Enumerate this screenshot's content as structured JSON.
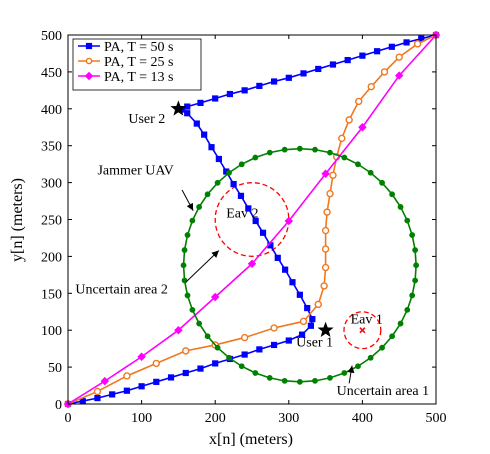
{
  "chart_data": {
    "type": "line",
    "xlabel": "x[n] (meters)",
    "ylabel": "y[n] (meters)",
    "xlim": [
      0,
      500
    ],
    "ylim": [
      0,
      500
    ],
    "xticks": [
      0,
      100,
      200,
      300,
      400,
      500
    ],
    "yticks": [
      0,
      50,
      100,
      150,
      200,
      250,
      300,
      350,
      400,
      450,
      500
    ],
    "grid": false,
    "legend_position": "top-left",
    "series": [
      {
        "name": "PA, T = 50 s",
        "color": "#0000ff",
        "marker": "square",
        "points": [
          [
            0,
            0
          ],
          [
            20,
            4
          ],
          [
            40,
            8
          ],
          [
            60,
            13
          ],
          [
            80,
            18
          ],
          [
            100,
            24
          ],
          [
            120,
            30
          ],
          [
            140,
            36
          ],
          [
            160,
            42
          ],
          [
            180,
            48
          ],
          [
            200,
            55
          ],
          [
            220,
            61
          ],
          [
            240,
            67
          ],
          [
            260,
            74
          ],
          [
            280,
            80
          ],
          [
            300,
            86
          ],
          [
            318,
            94
          ],
          [
            330,
            106
          ],
          [
            332,
            115
          ],
          [
            325,
            130
          ],
          [
            315,
            148
          ],
          [
            305,
            165
          ],
          [
            295,
            182
          ],
          [
            285,
            198
          ],
          [
            275,
            215
          ],
          [
            265,
            232
          ],
          [
            255,
            248
          ],
          [
            245,
            265
          ],
          [
            235,
            282
          ],
          [
            225,
            298
          ],
          [
            215,
            315
          ],
          [
            205,
            332
          ],
          [
            195,
            348
          ],
          [
            185,
            365
          ],
          [
            175,
            380
          ],
          [
            162,
            394
          ],
          [
            155,
            399
          ],
          [
            162,
            403
          ],
          [
            180,
            408
          ],
          [
            200,
            414
          ],
          [
            220,
            420
          ],
          [
            240,
            425
          ],
          [
            260,
            431
          ],
          [
            280,
            437
          ],
          [
            300,
            442
          ],
          [
            320,
            448
          ],
          [
            340,
            454
          ],
          [
            360,
            460
          ],
          [
            380,
            466
          ],
          [
            400,
            472
          ],
          [
            420,
            478
          ],
          [
            440,
            484
          ],
          [
            460,
            490
          ],
          [
            480,
            495
          ],
          [
            500,
            500
          ]
        ]
      },
      {
        "name": "PA, T = 25 s",
        "color": "#f07820",
        "marker": "circle",
        "points": [
          [
            0,
            0
          ],
          [
            40,
            17
          ],
          [
            80,
            38
          ],
          [
            120,
            55
          ],
          [
            160,
            72
          ],
          [
            200,
            80
          ],
          [
            240,
            90
          ],
          [
            280,
            103
          ],
          [
            320,
            112
          ],
          [
            340,
            135
          ],
          [
            348,
            160
          ],
          [
            350,
            185
          ],
          [
            350,
            210
          ],
          [
            350,
            235
          ],
          [
            352,
            260
          ],
          [
            356,
            285
          ],
          [
            360,
            310
          ],
          [
            365,
            335
          ],
          [
            372,
            360
          ],
          [
            382,
            385
          ],
          [
            395,
            410
          ],
          [
            412,
            430
          ],
          [
            430,
            450
          ],
          [
            450,
            470
          ],
          [
            475,
            488
          ],
          [
            500,
            500
          ]
        ]
      },
      {
        "name": "PA, T = 13 s",
        "color": "#ff00ff",
        "marker": "diamond",
        "points": [
          [
            0,
            0
          ],
          [
            50,
            31
          ],
          [
            100,
            64
          ],
          [
            150,
            100
          ],
          [
            200,
            145
          ],
          [
            250,
            190
          ],
          [
            300,
            248
          ],
          [
            350,
            312
          ],
          [
            400,
            375
          ],
          [
            450,
            445
          ],
          [
            500,
            500
          ]
        ]
      },
      {
        "name": "",
        "color": "#008000",
        "marker": "circle",
        "closed": true,
        "circle": {
          "cx": 315,
          "cy": 188,
          "r": 158,
          "count": 48
        }
      }
    ],
    "uncertain_circles": [
      {
        "cx": 250,
        "cy": 250,
        "r": 50
      },
      {
        "cx": 400,
        "cy": 100,
        "r": 25
      }
    ],
    "points_of_interest": [
      {
        "x": 150,
        "y": 400,
        "marker": "star",
        "color": "#000000"
      },
      {
        "x": 350,
        "y": 100,
        "marker": "star",
        "color": "#000000"
      },
      {
        "x": 400,
        "y": 100,
        "marker": "x",
        "color": "#ff0000"
      }
    ],
    "annotations": [
      {
        "text": "User 2",
        "x": 82,
        "y": 381
      },
      {
        "text": "User 1",
        "x": 310,
        "y": 78
      },
      {
        "text": "Eav 2",
        "x": 215,
        "y": 253
      },
      {
        "text": "Eav 1",
        "x": 384,
        "y": 109
      },
      {
        "text": "Jammer UAV",
        "x": 40,
        "y": 311
      },
      {
        "text": "Uncertain area 2",
        "x": 10,
        "y": 150
      },
      {
        "text": "Uncertain area 1",
        "x": 365,
        "y": 12
      }
    ],
    "arrows": [
      {
        "from": [
          155,
          290
        ],
        "to": [
          170,
          262
        ]
      },
      {
        "from": [
          160,
          165
        ],
        "to": [
          205,
          208
        ]
      },
      {
        "from": [
          382,
          28
        ],
        "to": [
          386,
          52
        ]
      }
    ]
  }
}
